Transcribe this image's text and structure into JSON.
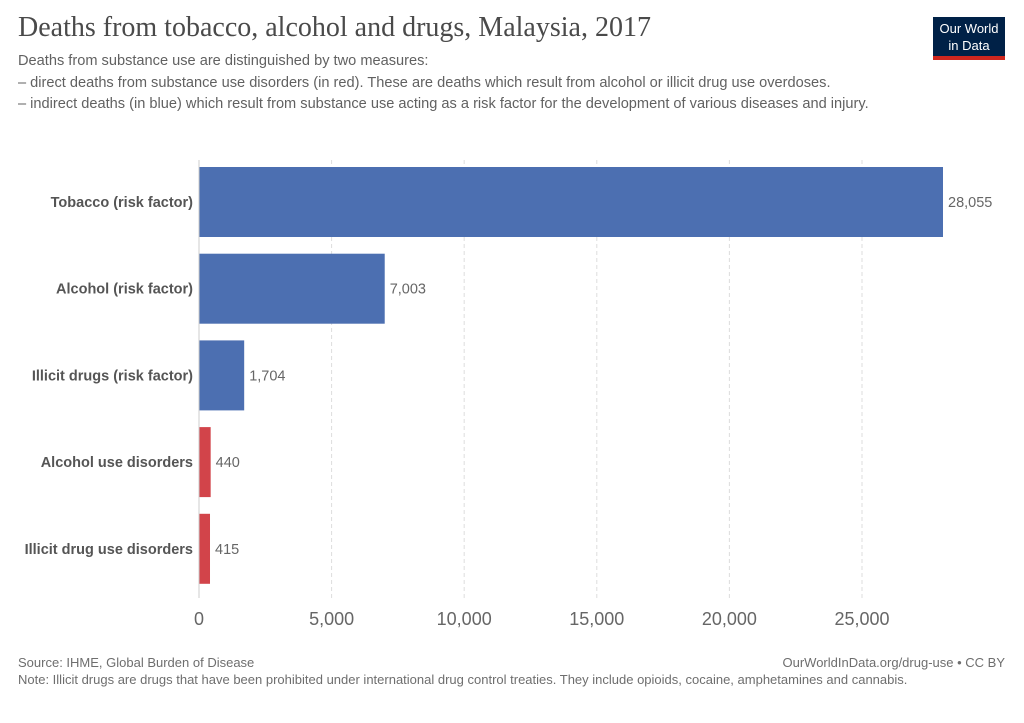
{
  "header": {
    "title": "Deaths from tobacco, alcohol and drugs, Malaysia, 2017",
    "subtitle_lines": [
      "Deaths from substance use are distinguished by two measures:",
      "– direct deaths from substance use disorders (in red). These are deaths which result from alcohol or illicit drug use overdoses.",
      " – indirect deaths (in blue) which result from substance use acting as a risk factor for the development of various diseases and injury."
    ]
  },
  "logo": {
    "line1": "Our World",
    "line2": "in Data",
    "bg_color": "#002147",
    "accent_color": "#ce261e"
  },
  "footer": {
    "source": "Source: IHME, Global Burden of Disease",
    "url": "OurWorldInData.org/drug-use • CC BY",
    "note": "Note: Illicit drugs are drugs that have been prohibited under international drug control treaties. They include opioids, cocaine, amphetamines and cannabis."
  },
  "chart_data": {
    "type": "bar",
    "orientation": "horizontal",
    "categories": [
      "Tobacco (risk factor)",
      "Alcohol (risk factor)",
      "Illicit drugs (risk factor)",
      "Alcohol use disorders",
      "Illicit drug use disorders"
    ],
    "values": [
      28055,
      7003,
      1704,
      440,
      415
    ],
    "value_labels": [
      "28,055",
      "7,003",
      "1,704",
      "440",
      "415"
    ],
    "colors": [
      "#4c6fb1",
      "#4c6fb1",
      "#4c6fb1",
      "#d2444a",
      "#d2444a"
    ],
    "xlim": [
      0,
      28055
    ],
    "xticks": [
      0,
      5000,
      10000,
      15000,
      20000,
      25000
    ],
    "xtick_labels": [
      "0",
      "5,000",
      "10,000",
      "15,000",
      "20,000",
      "25,000"
    ],
    "grid": true
  }
}
